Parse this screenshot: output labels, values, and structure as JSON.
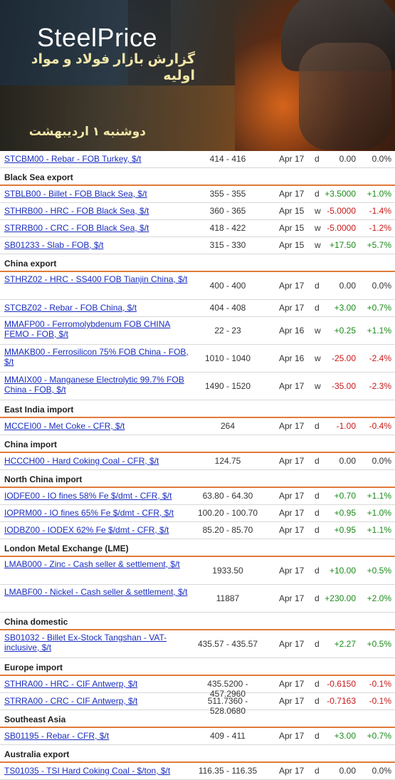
{
  "banner": {
    "brand": "SteelPrice",
    "subtitle": "گزارش بازار فولاد و مواد اولیه",
    "date": "دوشنبه ۱ اردیبهشت"
  },
  "rows": [
    {
      "type": "row",
      "name": "STCBM00 - Rebar - FOB Turkey, $/t",
      "price": "414 - 416",
      "date": "Apr 17",
      "freq": "d",
      "chg": "0.00",
      "pct": "0.0%",
      "dir": "neu"
    },
    {
      "type": "section",
      "label": "Black Sea export"
    },
    {
      "type": "row",
      "name": "STBLB00 - Billet - FOB Black Sea, $/t",
      "price": "355 - 355",
      "date": "Apr 17",
      "freq": "d",
      "chg": "+3.5000",
      "pct": "+1.0%",
      "dir": "pos"
    },
    {
      "type": "row",
      "name": "STHRB00 - HRC - FOB Black Sea, $/t",
      "price": "360 - 365",
      "date": "Apr 15",
      "freq": "w",
      "chg": "-5.0000",
      "pct": "-1.4%",
      "dir": "neg"
    },
    {
      "type": "row",
      "name": "STRRB00 - CRC - FOB Black Sea, $/t",
      "price": "418 - 422",
      "date": "Apr 15",
      "freq": "w",
      "chg": "-5.0000",
      "pct": "-1.2%",
      "dir": "neg"
    },
    {
      "type": "row",
      "name": "SB01233 - Slab - FOB, $/t",
      "price": "315 - 330",
      "date": "Apr 15",
      "freq": "w",
      "chg": "+17.50",
      "pct": "+5.7%",
      "dir": "pos"
    },
    {
      "type": "section",
      "label": "China export"
    },
    {
      "type": "row",
      "tall": true,
      "name": "STHRZ02 - HRC - SS400 FOB Tianjin China, $/t",
      "price": "400 - 400",
      "date": "Apr 17",
      "freq": "d",
      "chg": "0.00",
      "pct": "0.0%",
      "dir": "neu"
    },
    {
      "type": "row",
      "name": "STCBZ02 - Rebar - FOB China, $/t",
      "price": "404 - 408",
      "date": "Apr 17",
      "freq": "d",
      "chg": "+3.00",
      "pct": "+0.7%",
      "dir": "pos"
    },
    {
      "type": "row",
      "tall": true,
      "name": "MMAFP00 - Ferromolybdenum FOB CHINA FEMO - FOB, $/t",
      "price": "22 - 23",
      "date": "Apr 16",
      "freq": "w",
      "chg": "+0.25",
      "pct": "+1.1%",
      "dir": "pos"
    },
    {
      "type": "row",
      "tall": true,
      "name": "MMAKB00 - Ferrosilicon 75% FOB China - FOB, $/t",
      "price": "1010 - 1040",
      "date": "Apr 16",
      "freq": "w",
      "chg": "-25.00",
      "pct": "-2.4%",
      "dir": "neg"
    },
    {
      "type": "row",
      "tall": true,
      "name": "MMAIX00 - Manganese Electrolytic 99.7% FOB China - FOB, $/t",
      "price": "1490 - 1520",
      "date": "Apr 17",
      "freq": "w",
      "chg": "-35.00",
      "pct": "-2.3%",
      "dir": "neg"
    },
    {
      "type": "section",
      "label": "East India import"
    },
    {
      "type": "row",
      "name": "MCCEI00 - Met Coke - CFR, $/t",
      "price": "264",
      "date": "Apr 17",
      "freq": "d",
      "chg": "-1.00",
      "pct": "-0.4%",
      "dir": "neg"
    },
    {
      "type": "section",
      "label": "China import"
    },
    {
      "type": "row",
      "name": "HCCCH00 - Hard Coking Coal - CFR, $/t",
      "price": "124.75",
      "date": "Apr 17",
      "freq": "d",
      "chg": "0.00",
      "pct": "0.0%",
      "dir": "neu"
    },
    {
      "type": "section",
      "label": "North China import"
    },
    {
      "type": "row",
      "name": "IODFE00 - IO fines 58% Fe $/dmt - CFR, $/t",
      "price": "63.80 - 64.30",
      "date": "Apr 17",
      "freq": "d",
      "chg": "+0.70",
      "pct": "+1.1%",
      "dir": "pos"
    },
    {
      "type": "row",
      "name": "IOPRM00 - IO fines 65% Fe $/dmt - CFR, $/t",
      "price": "100.20 - 100.70",
      "date": "Apr 17",
      "freq": "d",
      "chg": "+0.95",
      "pct": "+1.0%",
      "dir": "pos"
    },
    {
      "type": "row",
      "name": "IODBZ00 - IODEX 62% Fe $/dmt - CFR, $/t",
      "price": "85.20 - 85.70",
      "date": "Apr 17",
      "freq": "d",
      "chg": "+0.95",
      "pct": "+1.1%",
      "dir": "pos"
    },
    {
      "type": "section",
      "label": "London Metal Exchange (LME)"
    },
    {
      "type": "row",
      "tall": true,
      "name": "LMAB000 - Zinc - Cash seller & settlement, $/t",
      "price": "1933.50",
      "date": "Apr 17",
      "freq": "d",
      "chg": "+10.00",
      "pct": "+0.5%",
      "dir": "pos"
    },
    {
      "type": "row",
      "tall": true,
      "name": "LMABF00 - Nickel - Cash seller & settlement, $/t",
      "price": "11887",
      "date": "Apr 17",
      "freq": "d",
      "chg": "+230.00",
      "pct": "+2.0%",
      "dir": "pos"
    },
    {
      "type": "section",
      "label": "China domestic"
    },
    {
      "type": "row",
      "tall": true,
      "name": "SB01032 - Billet Ex-Stock Tangshan - VAT-inclusive, $/t",
      "price": "435.57 - 435.57",
      "date": "Apr 17",
      "freq": "d",
      "chg": "+2.27",
      "pct": "+0.5%",
      "dir": "pos"
    },
    {
      "type": "section",
      "label": "Europe import"
    },
    {
      "type": "row",
      "name": "STHRA00 - HRC - CIF Antwerp, $/t",
      "price": "435.5200 - 457.2960",
      "date": "Apr 17",
      "freq": "d",
      "chg": "-0.6150",
      "pct": "-0.1%",
      "dir": "neg"
    },
    {
      "type": "row",
      "name": "STRRA00 - CRC - CIF Antwerp, $/t",
      "price": "511.7360 - 528.0680",
      "date": "Apr 17",
      "freq": "d",
      "chg": "-0.7163",
      "pct": "-0.1%",
      "dir": "neg"
    },
    {
      "type": "section",
      "label": "Southeast Asia"
    },
    {
      "type": "row",
      "name": "SB01195 - Rebar - CFR, $/t",
      "price": "409 - 411",
      "date": "Apr 17",
      "freq": "d",
      "chg": "+3.00",
      "pct": "+0.7%",
      "dir": "pos"
    },
    {
      "type": "section",
      "label": "Australia export"
    },
    {
      "type": "row",
      "name": "TS01035 - TSI Hard Coking Coal - $/ton, $/t",
      "price": "116.35 - 116.35",
      "date": "Apr 17",
      "freq": "d",
      "chg": "0.00",
      "pct": "0.0%",
      "dir": "neu"
    }
  ]
}
